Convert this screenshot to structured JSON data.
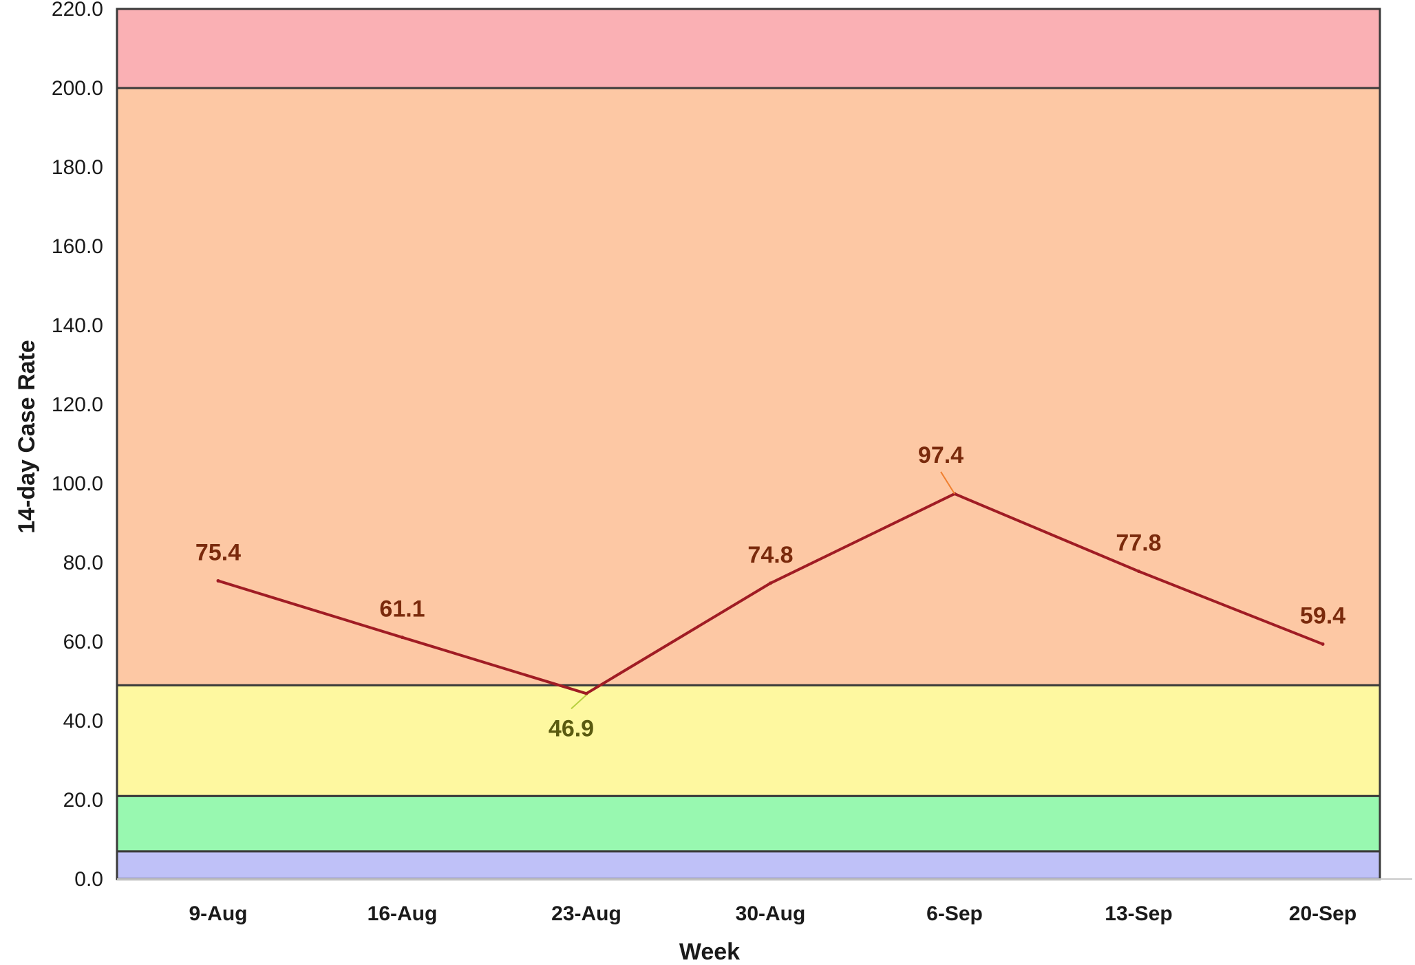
{
  "chart_data": {
    "type": "line",
    "title": "",
    "xlabel": "Week",
    "ylabel": "14-day Case Rate",
    "ylim": [
      0,
      220
    ],
    "yticks": [
      "0.0",
      "20.0",
      "40.0",
      "60.0",
      "80.0",
      "100.0",
      "120.0",
      "140.0",
      "160.0",
      "180.0",
      "200.0",
      "220.0"
    ],
    "categories": [
      "9-Aug",
      "16-Aug",
      "23-Aug",
      "30-Aug",
      "6-Sep",
      "13-Sep",
      "20-Sep"
    ],
    "series": [
      {
        "values": [
          75.4,
          61.1,
          46.9,
          74.8,
          97.4,
          77.8,
          59.4
        ],
        "labels": [
          "75.4",
          "61.1",
          "46.9",
          "74.8",
          "97.4",
          "77.8",
          "59.4"
        ],
        "color": "#a01c24"
      }
    ],
    "bands": [
      {
        "from": 0,
        "to": 7,
        "color": "#bfc1f8"
      },
      {
        "from": 7,
        "to": 21,
        "color": "#98f8b0"
      },
      {
        "from": 21,
        "to": 49,
        "color": "#fef8a0"
      },
      {
        "from": 49,
        "to": 200,
        "color": "#fdc8a4"
      },
      {
        "from": 200,
        "to": 220,
        "color": "#fab0b4"
      }
    ],
    "label_colors": {
      "default": "#7a2a0c",
      "in_yellow_band": "#5a5a10"
    },
    "grid": false,
    "legend": "none"
  }
}
